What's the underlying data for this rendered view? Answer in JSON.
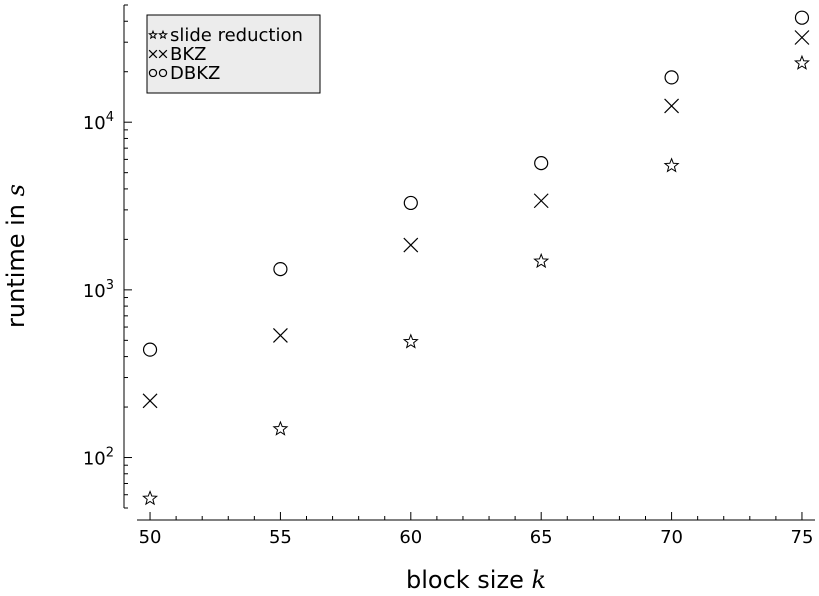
{
  "chart_data": {
    "type": "scatter",
    "xlabel": "block size",
    "xlabel_var": "k",
    "ylabel": "runtime in",
    "ylabel_var": "s",
    "x": [
      50,
      55,
      60,
      65,
      70,
      75
    ],
    "xlim": [
      49.5,
      75.5
    ],
    "ylim": [
      50,
      50000
    ],
    "y_scale": "log",
    "x_tick_labels": [
      "50",
      "55",
      "60",
      "65",
      "70",
      "75"
    ],
    "y_ticks": [
      {
        "base": "10",
        "exp": "2",
        "value": 100
      },
      {
        "base": "10",
        "exp": "3",
        "value": 1000
      },
      {
        "base": "10",
        "exp": "4",
        "value": 10000
      }
    ],
    "grid": false,
    "legend_position": "top-left",
    "series": [
      {
        "name": "slide reduction",
        "marker": "star",
        "values": [
          57,
          148,
          490,
          1480,
          5500,
          22500
        ]
      },
      {
        "name": "BKZ",
        "marker": "cross",
        "values": [
          218,
          535,
          1850,
          3400,
          12500,
          32000
        ]
      },
      {
        "name": "DBKZ",
        "marker": "circle",
        "values": [
          440,
          1330,
          3300,
          5700,
          18500,
          42000
        ]
      }
    ]
  }
}
